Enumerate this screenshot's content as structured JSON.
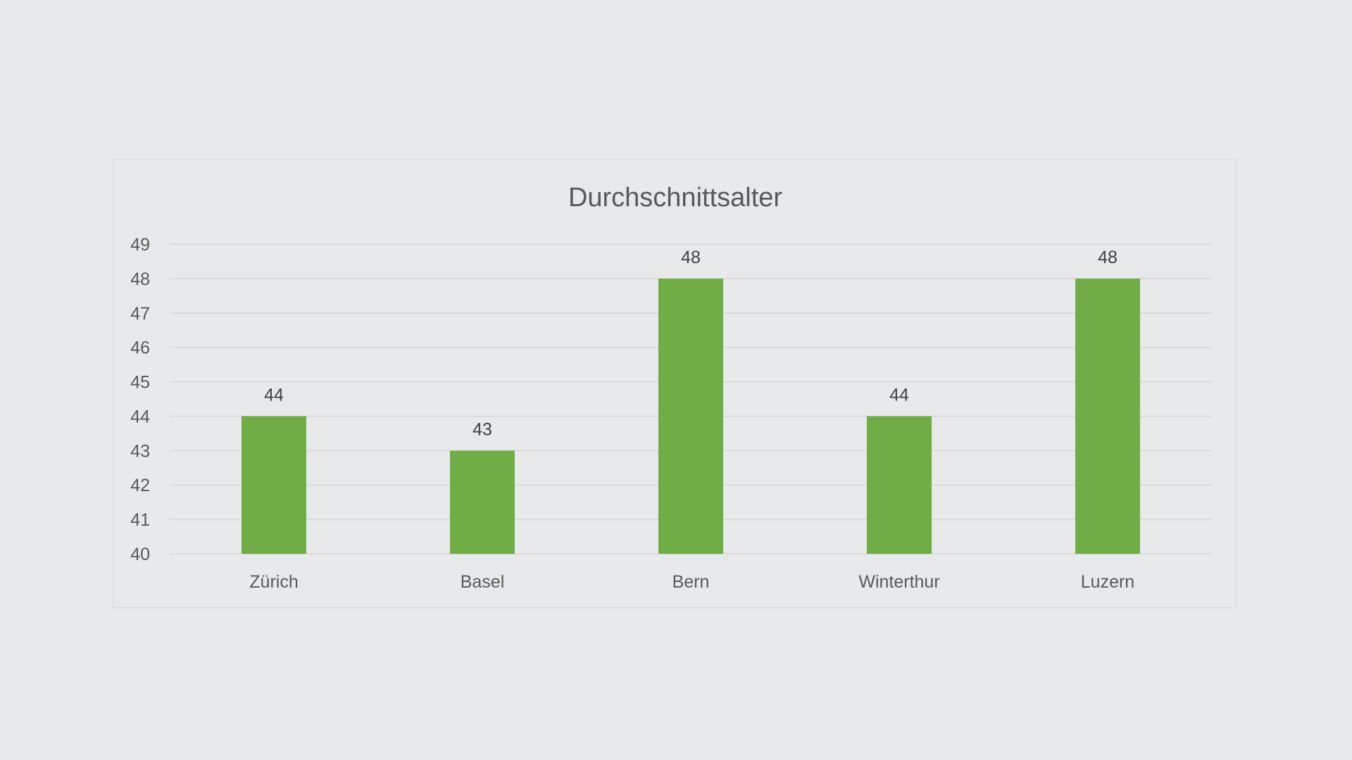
{
  "chart_data": {
    "type": "bar",
    "title": "Durchschnittsalter",
    "categories": [
      "Zürich",
      "Basel",
      "Bern",
      "Winterthur",
      "Luzern"
    ],
    "values": [
      44,
      43,
      48,
      44,
      48
    ],
    "xlabel": "",
    "ylabel": "",
    "ylim": [
      40,
      49
    ],
    "yticks": [
      "40",
      "41",
      "42",
      "43",
      "44",
      "45",
      "46",
      "47",
      "48",
      "49"
    ],
    "data_labels": [
      "44",
      "43",
      "48",
      "44",
      "48"
    ],
    "grid": true,
    "legend": "none",
    "bar_color": "#70ad47"
  }
}
